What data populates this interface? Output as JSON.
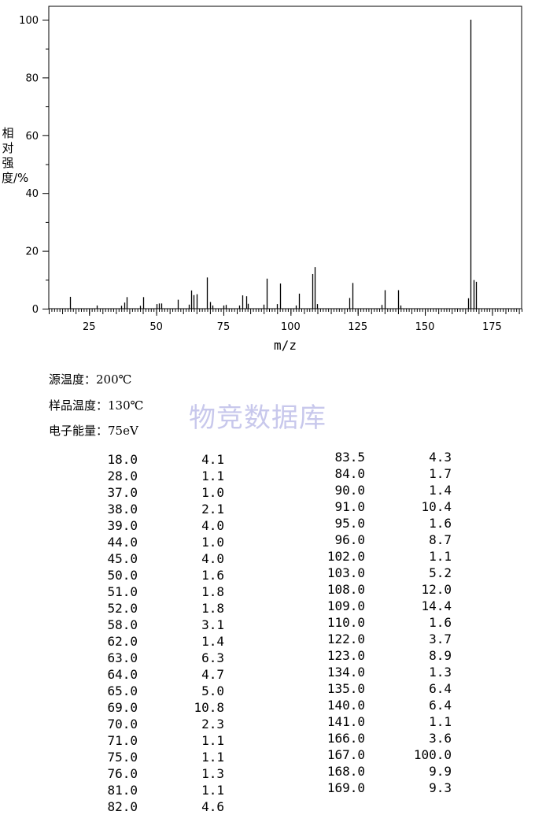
{
  "chart_data": {
    "type": "bar",
    "xlabel": "m/z",
    "ylabel": "相对强度/%",
    "xlim": [
      10,
      186
    ],
    "ylim": [
      0,
      100
    ],
    "xticks": [
      25,
      50,
      75,
      100,
      125,
      150,
      175
    ],
    "yticks": [
      0,
      20,
      40,
      60,
      80,
      100
    ],
    "grid": false,
    "peaks": [
      {
        "x": 18.0,
        "y": 4.1
      },
      {
        "x": 28.0,
        "y": 1.1
      },
      {
        "x": 37.0,
        "y": 1.0
      },
      {
        "x": 38.0,
        "y": 2.1
      },
      {
        "x": 39.0,
        "y": 4.0
      },
      {
        "x": 44.0,
        "y": 1.0
      },
      {
        "x": 45.0,
        "y": 4.0
      },
      {
        "x": 50.0,
        "y": 1.6
      },
      {
        "x": 51.0,
        "y": 1.8
      },
      {
        "x": 52.0,
        "y": 1.8
      },
      {
        "x": 58.0,
        "y": 3.1
      },
      {
        "x": 62.0,
        "y": 1.4
      },
      {
        "x": 63.0,
        "y": 6.3
      },
      {
        "x": 64.0,
        "y": 4.7
      },
      {
        "x": 65.0,
        "y": 5.0
      },
      {
        "x": 69.0,
        "y": 10.8
      },
      {
        "x": 70.0,
        "y": 2.3
      },
      {
        "x": 71.0,
        "y": 1.1
      },
      {
        "x": 75.0,
        "y": 1.1
      },
      {
        "x": 76.0,
        "y": 1.3
      },
      {
        "x": 81.0,
        "y": 1.1
      },
      {
        "x": 82.0,
        "y": 4.6
      },
      {
        "x": 83.5,
        "y": 4.3
      },
      {
        "x": 84.0,
        "y": 1.7
      },
      {
        "x": 90.0,
        "y": 1.4
      },
      {
        "x": 91.0,
        "y": 10.4
      },
      {
        "x": 95.0,
        "y": 1.6
      },
      {
        "x": 96.0,
        "y": 8.7
      },
      {
        "x": 102.0,
        "y": 1.1
      },
      {
        "x": 103.0,
        "y": 5.2
      },
      {
        "x": 108.0,
        "y": 12.0
      },
      {
        "x": 109.0,
        "y": 14.4
      },
      {
        "x": 110.0,
        "y": 1.6
      },
      {
        "x": 122.0,
        "y": 3.7
      },
      {
        "x": 123.0,
        "y": 8.9
      },
      {
        "x": 134.0,
        "y": 1.3
      },
      {
        "x": 135.0,
        "y": 6.4
      },
      {
        "x": 140.0,
        "y": 6.4
      },
      {
        "x": 141.0,
        "y": 1.1
      },
      {
        "x": 166.0,
        "y": 3.6
      },
      {
        "x": 167.0,
        "y": 100.0
      },
      {
        "x": 168.0,
        "y": 9.9
      },
      {
        "x": 169.0,
        "y": 9.3
      }
    ]
  },
  "conditions": [
    {
      "label": "源温度：",
      "value": "200℃"
    },
    {
      "label": "样品温度：",
      "value": "130℃"
    },
    {
      "label": "电子能量：",
      "value": "75eV"
    }
  ],
  "watermark": "物竞数据库",
  "table_left": [
    [
      "18.0",
      "4.1"
    ],
    [
      "28.0",
      "1.1"
    ],
    [
      "37.0",
      "1.0"
    ],
    [
      "38.0",
      "2.1"
    ],
    [
      "39.0",
      "4.0"
    ],
    [
      "44.0",
      "1.0"
    ],
    [
      "45.0",
      "4.0"
    ],
    [
      "50.0",
      "1.6"
    ],
    [
      "51.0",
      "1.8"
    ],
    [
      "52.0",
      "1.8"
    ],
    [
      "58.0",
      "3.1"
    ],
    [
      "62.0",
      "1.4"
    ],
    [
      "63.0",
      "6.3"
    ],
    [
      "64.0",
      "4.7"
    ],
    [
      "65.0",
      "5.0"
    ],
    [
      "69.0",
      "10.8"
    ],
    [
      "70.0",
      "2.3"
    ],
    [
      "71.0",
      "1.1"
    ],
    [
      "75.0",
      "1.1"
    ],
    [
      "76.0",
      "1.3"
    ],
    [
      "81.0",
      "1.1"
    ],
    [
      "82.0",
      "4.6"
    ]
  ],
  "table_right": [
    [
      "83.5",
      "4.3"
    ],
    [
      "84.0",
      "1.7"
    ],
    [
      "90.0",
      "1.4"
    ],
    [
      "91.0",
      "10.4"
    ],
    [
      "95.0",
      "1.6"
    ],
    [
      "96.0",
      "8.7"
    ],
    [
      "102.0",
      "1.1"
    ],
    [
      "103.0",
      "5.2"
    ],
    [
      "108.0",
      "12.0"
    ],
    [
      "109.0",
      "14.4"
    ],
    [
      "110.0",
      "1.6"
    ],
    [
      "122.0",
      "3.7"
    ],
    [
      "123.0",
      "8.9"
    ],
    [
      "134.0",
      "1.3"
    ],
    [
      "135.0",
      "6.4"
    ],
    [
      "140.0",
      "6.4"
    ],
    [
      "141.0",
      "1.1"
    ],
    [
      "166.0",
      "3.6"
    ],
    [
      "167.0",
      "100.0"
    ],
    [
      "168.0",
      "9.9"
    ],
    [
      "169.0",
      "9.3"
    ]
  ]
}
